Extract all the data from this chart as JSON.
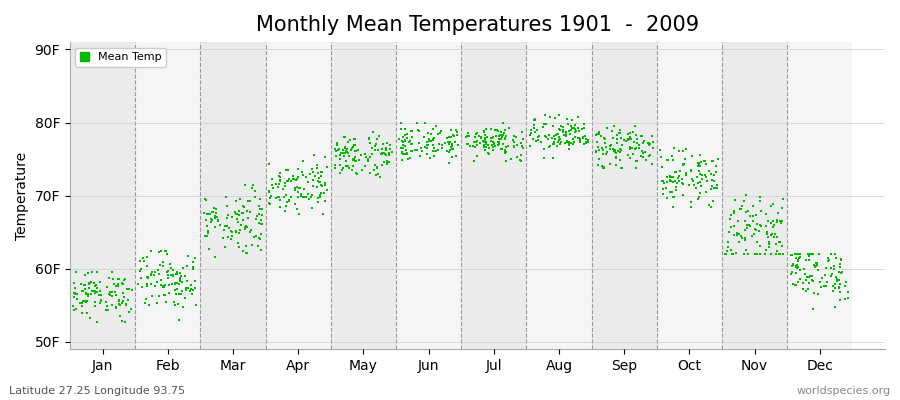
{
  "title": "Monthly Mean Temperatures 1901  -  2009",
  "ylabel": "Temperature",
  "xlabel_labels": [
    "Jan",
    "Feb",
    "Mar",
    "Apr",
    "May",
    "Jun",
    "Jul",
    "Aug",
    "Sep",
    "Oct",
    "Nov",
    "Dec"
  ],
  "ytick_labels": [
    "50F",
    "60F",
    "70F",
    "80F",
    "90F"
  ],
  "ytick_values": [
    50,
    60,
    70,
    80,
    90
  ],
  "ylim": [
    49,
    91
  ],
  "xlim": [
    0.0,
    12.5
  ],
  "legend_label": "Mean Temp",
  "dot_color": "#00bb00",
  "background_color": "#ffffff",
  "plot_bg_color": "#ffffff",
  "footer_left": "Latitude 27.25 Longitude 93.75",
  "footer_right": "worldspecies.org",
  "monthly_means": [
    56.5,
    58.5,
    66.5,
    71.5,
    75.5,
    77.2,
    77.5,
    78.2,
    76.5,
    72.5,
    65.0,
    59.5
  ],
  "monthly_stds": [
    1.6,
    2.0,
    2.2,
    1.8,
    1.5,
    1.2,
    1.2,
    1.3,
    1.5,
    1.8,
    2.3,
    2.0
  ],
  "monthly_mins": [
    52.5,
    51.5,
    61.5,
    67.5,
    72.5,
    74.5,
    74.8,
    75.2,
    73.8,
    68.5,
    62.0,
    53.5
  ],
  "monthly_maxs": [
    59.5,
    62.5,
    71.5,
    75.5,
    79.5,
    80.0,
    80.5,
    81.0,
    79.5,
    76.5,
    73.5,
    62.0
  ],
  "n_years": 109,
  "title_fontsize": 15,
  "axis_label_fontsize": 10,
  "tick_fontsize": 10,
  "footer_fontsize": 8,
  "marker_size": 3
}
